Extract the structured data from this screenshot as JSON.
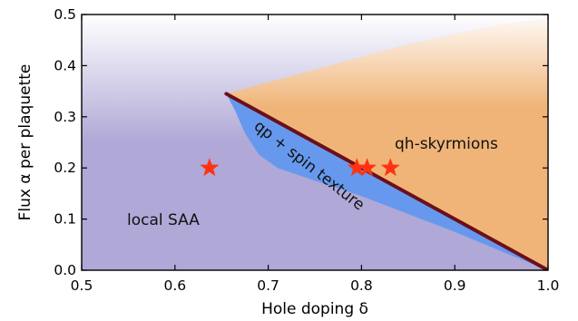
{
  "chart_data": {
    "type": "area",
    "title": "",
    "xlabel": "Hole doping δ",
    "ylabel": "Flux α per plaquette",
    "xlim": [
      0.5,
      1.0
    ],
    "ylim": [
      0.0,
      0.5
    ],
    "x_ticks": [
      "0.5",
      "0.6",
      "0.7",
      "0.8",
      "0.9",
      "1.0"
    ],
    "y_ticks": [
      "0.0",
      "0.1",
      "0.2",
      "0.3",
      "0.4",
      "0.5"
    ],
    "grid": false,
    "regions": [
      {
        "label": "local SAA",
        "color": "#b0a8d6"
      },
      {
        "label": "qp + spin texture",
        "color": "#6699ee"
      },
      {
        "label": "qh-skyrmions",
        "color": "#f0b478"
      }
    ],
    "boundary_line": {
      "color": "#6b0f1a",
      "points": [
        [
          0.655,
          0.345
        ],
        [
          1.0,
          0.0
        ]
      ]
    },
    "lower_boundary": {
      "points": [
        [
          0.655,
          0.345
        ],
        [
          0.665,
          0.31
        ],
        [
          0.675,
          0.268
        ],
        [
          0.69,
          0.226
        ],
        [
          0.71,
          0.2
        ],
        [
          0.75,
          0.175
        ],
        [
          0.8,
          0.145
        ],
        [
          0.85,
          0.11
        ],
        [
          0.9,
          0.075
        ],
        [
          0.95,
          0.037
        ],
        [
          1.0,
          0.0
        ]
      ]
    },
    "skyrmion_upper_boundary": {
      "points": [
        [
          0.655,
          0.345
        ],
        [
          0.75,
          0.392
        ],
        [
          0.85,
          0.442
        ],
        [
          0.95,
          0.48
        ],
        [
          1.0,
          0.49
        ]
      ]
    },
    "markers": {
      "shape": "star",
      "color": "#ff3311",
      "points": [
        [
          0.637,
          0.2
        ],
        [
          0.795,
          0.2
        ],
        [
          0.806,
          0.2
        ],
        [
          0.831,
          0.2
        ]
      ]
    }
  }
}
